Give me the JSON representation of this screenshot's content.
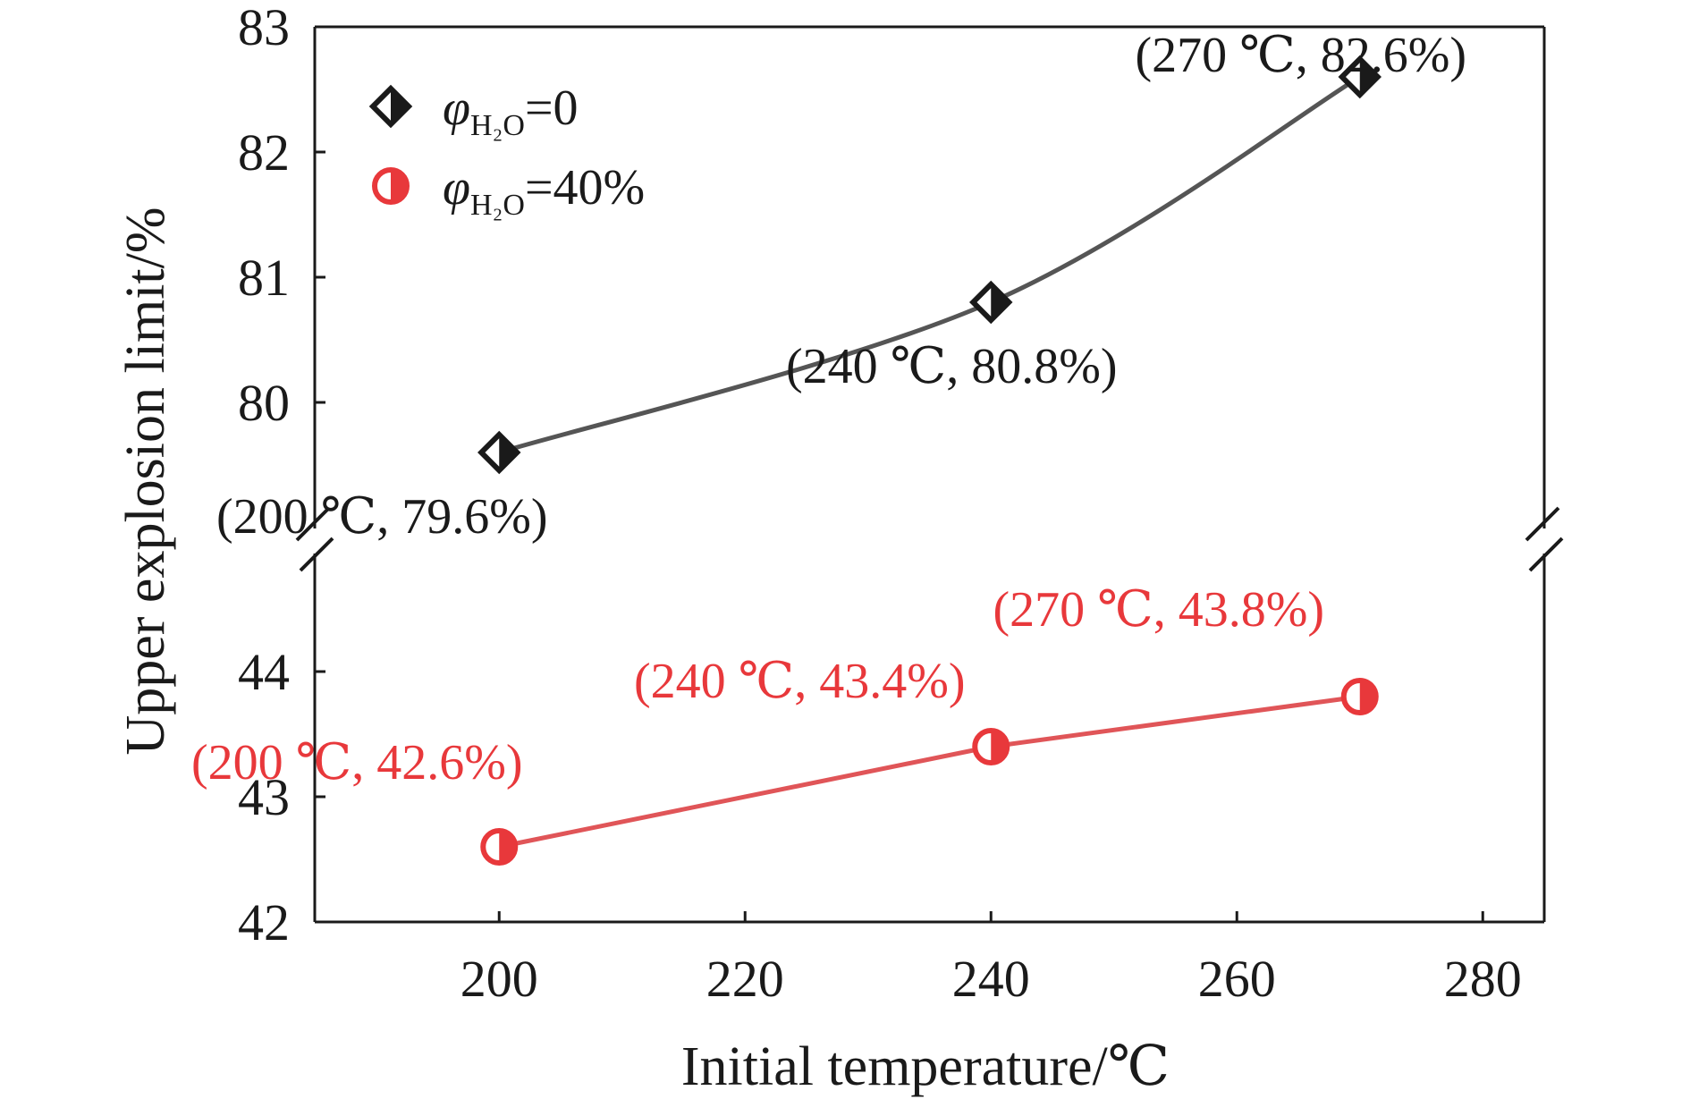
{
  "chart_data": {
    "type": "line",
    "title": "",
    "xlabel": "Initial temperature/℃",
    "ylabel": "Upper explosion limit/%",
    "x_ticks": [
      200,
      220,
      240,
      260,
      280
    ],
    "xlim": [
      185,
      285
    ],
    "y_axis_break": true,
    "upper_segment": {
      "ylim": [
        79,
        83
      ],
      "ticks": [
        80,
        81,
        82,
        83
      ]
    },
    "lower_segment": {
      "ylim": [
        42,
        45
      ],
      "ticks": [
        42,
        43,
        44
      ]
    },
    "grid": false,
    "legend_position": "top-left",
    "series": [
      {
        "name_prefix": "φ",
        "name_subscript": "H₂O",
        "name_suffix": "=0",
        "segment": "upper",
        "color": "#1a1a1a",
        "line_color": "#555555",
        "marker": "diamond-half-filled",
        "x": [
          200,
          240,
          270
        ],
        "y": [
          79.6,
          80.8,
          82.6
        ],
        "labels": [
          "(200 ℃, 79.6%)",
          "(240 ℃, 80.8%)",
          "(270 ℃, 82.6%)"
        ]
      },
      {
        "name_prefix": "φ",
        "name_subscript": "H₂O",
        "name_suffix": "=40%",
        "segment": "lower",
        "color": "#e8383b",
        "line_color": "#e05558",
        "marker": "circle-half-filled",
        "x": [
          200,
          240,
          270
        ],
        "y": [
          42.6,
          43.4,
          43.8
        ],
        "labels": [
          "(200 ℃, 42.6%)",
          "(240 ℃, 43.4%)",
          "(270 ℃, 43.8%)"
        ]
      }
    ]
  }
}
